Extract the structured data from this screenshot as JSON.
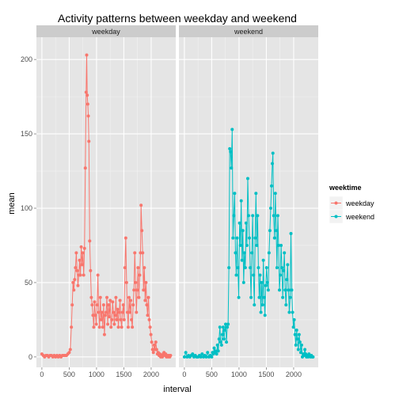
{
  "chart_data": {
    "type": "line",
    "title": "Activity patterns between weekday and weekend",
    "xlabel": "interval",
    "ylabel": "mean",
    "xlim": [
      -100,
      2450
    ],
    "ylim": [
      -7,
      215
    ],
    "x_ticks": [
      0,
      500,
      1000,
      1500,
      2000
    ],
    "y_ticks": [
      0,
      50,
      100,
      150,
      200
    ],
    "grid": true,
    "facets": [
      "weekday",
      "weekend"
    ],
    "legend": {
      "title": "weektime",
      "placement": "right",
      "entries": [
        {
          "label": "weekday",
          "color": "#F8766D"
        },
        {
          "label": "weekend",
          "color": "#00BFC4"
        }
      ]
    },
    "series": [
      {
        "name": "weekday",
        "facet": "weekday",
        "color": "#F8766D",
        "points": [
          [
            0,
            2
          ],
          [
            25,
            1
          ],
          [
            50,
            0
          ],
          [
            75,
            1
          ],
          [
            100,
            1
          ],
          [
            125,
            0
          ],
          [
            150,
            1
          ],
          [
            175,
            1
          ],
          [
            200,
            0
          ],
          [
            225,
            1
          ],
          [
            250,
            0
          ],
          [
            275,
            1
          ],
          [
            300,
            0
          ],
          [
            325,
            1
          ],
          [
            350,
            0
          ],
          [
            375,
            1
          ],
          [
            400,
            1
          ],
          [
            425,
            1
          ],
          [
            450,
            1
          ],
          [
            475,
            2
          ],
          [
            500,
            3
          ],
          [
            520,
            5
          ],
          [
            540,
            20
          ],
          [
            555,
            35
          ],
          [
            570,
            50
          ],
          [
            585,
            45
          ],
          [
            600,
            52
          ],
          [
            615,
            60
          ],
          [
            630,
            70
          ],
          [
            645,
            58
          ],
          [
            660,
            48
          ],
          [
            675,
            55
          ],
          [
            690,
            65
          ],
          [
            705,
            55
          ],
          [
            720,
            74
          ],
          [
            735,
            62
          ],
          [
            750,
            70
          ],
          [
            765,
            55
          ],
          [
            780,
            73
          ],
          [
            795,
            127
          ],
          [
            810,
            178
          ],
          [
            820,
            203
          ],
          [
            830,
            176
          ],
          [
            840,
            170
          ],
          [
            850,
            162
          ],
          [
            860,
            145
          ],
          [
            875,
            78
          ],
          [
            890,
            58
          ],
          [
            905,
            40
          ],
          [
            920,
            35
          ],
          [
            935,
            28
          ],
          [
            950,
            20
          ],
          [
            965,
            37
          ],
          [
            980,
            28
          ],
          [
            995,
            22
          ],
          [
            1010,
            35
          ],
          [
            1025,
            55
          ],
          [
            1040,
            30
          ],
          [
            1055,
            20
          ],
          [
            1070,
            40
          ],
          [
            1085,
            25
          ],
          [
            1100,
            30
          ],
          [
            1115,
            20
          ],
          [
            1130,
            35
          ],
          [
            1145,
            15
          ],
          [
            1160,
            28
          ],
          [
            1175,
            30
          ],
          [
            1190,
            40
          ],
          [
            1205,
            22
          ],
          [
            1220,
            35
          ],
          [
            1235,
            27
          ],
          [
            1250,
            38
          ],
          [
            1265,
            20
          ],
          [
            1280,
            25
          ],
          [
            1295,
            37
          ],
          [
            1310,
            30
          ],
          [
            1325,
            22
          ],
          [
            1340,
            28
          ],
          [
            1355,
            40
          ],
          [
            1370,
            25
          ],
          [
            1385,
            32
          ],
          [
            1400,
            20
          ],
          [
            1415,
            30
          ],
          [
            1430,
            38
          ],
          [
            1445,
            25
          ],
          [
            1460,
            20
          ],
          [
            1475,
            30
          ],
          [
            1490,
            35
          ],
          [
            1505,
            25
          ],
          [
            1520,
            60
          ],
          [
            1535,
            80
          ],
          [
            1550,
            50
          ],
          [
            1565,
            30
          ],
          [
            1580,
            20
          ],
          [
            1595,
            40
          ],
          [
            1610,
            30
          ],
          [
            1625,
            38
          ],
          [
            1640,
            25
          ],
          [
            1655,
            20
          ],
          [
            1670,
            35
          ],
          [
            1685,
            45
          ],
          [
            1700,
            70
          ],
          [
            1715,
            50
          ],
          [
            1730,
            30
          ],
          [
            1745,
            45
          ],
          [
            1760,
            60
          ],
          [
            1775,
            40
          ],
          [
            1790,
            55
          ],
          [
            1805,
            70
          ],
          [
            1815,
            102
          ],
          [
            1830,
            85
          ],
          [
            1845,
            70
          ],
          [
            1860,
            45
          ],
          [
            1875,
            60
          ],
          [
            1890,
            38
          ],
          [
            1905,
            50
          ],
          [
            1920,
            35
          ],
          [
            1935,
            28
          ],
          [
            1950,
            40
          ],
          [
            1965,
            25
          ],
          [
            1980,
            20
          ],
          [
            1995,
            15
          ],
          [
            2010,
            10
          ],
          [
            2025,
            5
          ],
          [
            2040,
            3
          ],
          [
            2055,
            8
          ],
          [
            2070,
            5
          ],
          [
            2085,
            10
          ],
          [
            2100,
            5
          ],
          [
            2115,
            2
          ],
          [
            2130,
            3
          ],
          [
            2145,
            1
          ],
          [
            2160,
            2
          ],
          [
            2175,
            0
          ],
          [
            2190,
            1
          ],
          [
            2205,
            0
          ],
          [
            2220,
            2
          ],
          [
            2235,
            3
          ],
          [
            2250,
            1
          ],
          [
            2265,
            2
          ],
          [
            2280,
            0
          ],
          [
            2295,
            1
          ],
          [
            2310,
            0
          ],
          [
            2325,
            1
          ],
          [
            2340,
            0
          ],
          [
            2355,
            1
          ]
        ]
      },
      {
        "name": "weekend",
        "facet": "weekend",
        "color": "#00BFC4",
        "points": [
          [
            0,
            0
          ],
          [
            25,
            3
          ],
          [
            50,
            0
          ],
          [
            75,
            1
          ],
          [
            100,
            0
          ],
          [
            125,
            1
          ],
          [
            150,
            2
          ],
          [
            175,
            0
          ],
          [
            200,
            1
          ],
          [
            225,
            0
          ],
          [
            250,
            0
          ],
          [
            275,
            1
          ],
          [
            300,
            0
          ],
          [
            325,
            2
          ],
          [
            350,
            0
          ],
          [
            375,
            1
          ],
          [
            400,
            0
          ],
          [
            425,
            3
          ],
          [
            450,
            0
          ],
          [
            475,
            1
          ],
          [
            500,
            0
          ],
          [
            515,
            3
          ],
          [
            530,
            2
          ],
          [
            545,
            6
          ],
          [
            560,
            3
          ],
          [
            575,
            4
          ],
          [
            590,
            2
          ],
          [
            605,
            8
          ],
          [
            620,
            4
          ],
          [
            635,
            12
          ],
          [
            650,
            20
          ],
          [
            665,
            10
          ],
          [
            680,
            8
          ],
          [
            695,
            15
          ],
          [
            710,
            20
          ],
          [
            725,
            12
          ],
          [
            740,
            18
          ],
          [
            755,
            22
          ],
          [
            770,
            10
          ],
          [
            785,
            20
          ],
          [
            800,
            22
          ],
          [
            815,
            60
          ],
          [
            830,
            140
          ],
          [
            845,
            138
          ],
          [
            860,
            127
          ],
          [
            875,
            153
          ],
          [
            890,
            80
          ],
          [
            905,
            95
          ],
          [
            920,
            110
          ],
          [
            935,
            70
          ],
          [
            950,
            55
          ],
          [
            965,
            80
          ],
          [
            980,
            60
          ],
          [
            995,
            40
          ],
          [
            1010,
            90
          ],
          [
            1025,
            75
          ],
          [
            1040,
            105
          ],
          [
            1055,
            65
          ],
          [
            1070,
            85
          ],
          [
            1085,
            50
          ],
          [
            1100,
            70
          ],
          [
            1115,
            60
          ],
          [
            1130,
            90
          ],
          [
            1145,
            75
          ],
          [
            1160,
            120
          ],
          [
            1175,
            95
          ],
          [
            1190,
            80
          ],
          [
            1205,
            60
          ],
          [
            1220,
            40
          ],
          [
            1235,
            70
          ],
          [
            1250,
            95
          ],
          [
            1265,
            55
          ],
          [
            1280,
            35
          ],
          [
            1295,
            80
          ],
          [
            1310,
            110
          ],
          [
            1325,
            75
          ],
          [
            1340,
            95
          ],
          [
            1355,
            60
          ],
          [
            1370,
            40
          ],
          [
            1385,
            55
          ],
          [
            1400,
            30
          ],
          [
            1415,
            50
          ],
          [
            1430,
            35
          ],
          [
            1445,
            65
          ],
          [
            1460,
            40
          ],
          [
            1475,
            28
          ],
          [
            1490,
            48
          ],
          [
            1505,
            60
          ],
          [
            1520,
            50
          ],
          [
            1535,
            45
          ],
          [
            1550,
            70
          ],
          [
            1565,
            85
          ],
          [
            1580,
            100
          ],
          [
            1595,
            115
          ],
          [
            1610,
            130
          ],
          [
            1620,
            137
          ],
          [
            1635,
            95
          ],
          [
            1650,
            80
          ],
          [
            1665,
            110
          ],
          [
            1680,
            85
          ],
          [
            1695,
            60
          ],
          [
            1710,
            95
          ],
          [
            1725,
            75
          ],
          [
            1740,
            45
          ],
          [
            1755,
            55
          ],
          [
            1770,
            75
          ],
          [
            1785,
            60
          ],
          [
            1800,
            40
          ],
          [
            1815,
            58
          ],
          [
            1830,
            70
          ],
          [
            1845,
            45
          ],
          [
            1860,
            35
          ],
          [
            1875,
            52
          ],
          [
            1890,
            62
          ],
          [
            1905,
            45
          ],
          [
            1920,
            30
          ],
          [
            1935,
            40
          ],
          [
            1950,
            83
          ],
          [
            1965,
            45
          ],
          [
            1980,
            30
          ],
          [
            1995,
            20
          ],
          [
            2010,
            25
          ],
          [
            2025,
            15
          ],
          [
            2040,
            8
          ],
          [
            2055,
            18
          ],
          [
            2070,
            12
          ],
          [
            2085,
            5
          ],
          [
            2100,
            15
          ],
          [
            2115,
            10
          ],
          [
            2130,
            3
          ],
          [
            2145,
            8
          ],
          [
            2160,
            0
          ],
          [
            2175,
            2
          ],
          [
            2190,
            1
          ],
          [
            2205,
            5
          ],
          [
            2220,
            2
          ],
          [
            2235,
            0
          ],
          [
            2250,
            1
          ],
          [
            2265,
            0
          ],
          [
            2280,
            2
          ],
          [
            2295,
            1
          ],
          [
            2310,
            0
          ],
          [
            2325,
            1
          ],
          [
            2340,
            0
          ],
          [
            2355,
            0
          ]
        ]
      }
    ]
  }
}
